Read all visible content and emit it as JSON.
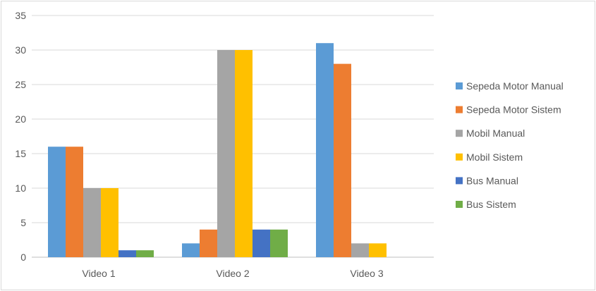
{
  "chart_data": {
    "type": "bar",
    "categories": [
      "Video 1",
      "Video 2",
      "Video 3"
    ],
    "series": [
      {
        "name": "Sepeda Motor Manual",
        "color": "#5b9bd5",
        "values": [
          16,
          2,
          31
        ]
      },
      {
        "name": "Sepeda Motor Sistem",
        "color": "#ed7d31",
        "values": [
          16,
          4,
          28
        ]
      },
      {
        "name": "Mobil Manual",
        "color": "#a5a5a5",
        "values": [
          10,
          30,
          2
        ]
      },
      {
        "name": "Mobil Sistem",
        "color": "#ffc000",
        "values": [
          10,
          30,
          2
        ]
      },
      {
        "name": "Bus Manual",
        "color": "#4472c4",
        "values": [
          1,
          4,
          0
        ]
      },
      {
        "name": "Bus Sistem",
        "color": "#70ad47",
        "values": [
          1,
          4,
          0
        ]
      }
    ],
    "ylim": [
      0,
      35
    ],
    "yticks": [
      0,
      5,
      10,
      15,
      20,
      25,
      30,
      35
    ],
    "grid": true,
    "legend_position": "right",
    "title": "",
    "xlabel": "",
    "ylabel": ""
  }
}
